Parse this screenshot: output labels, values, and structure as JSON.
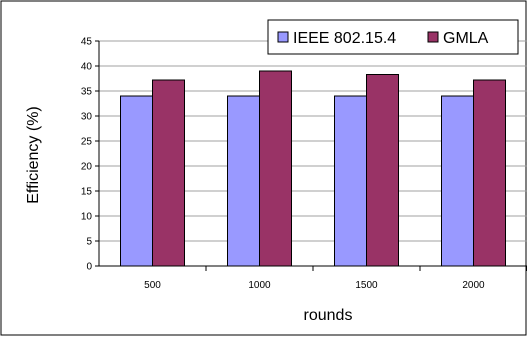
{
  "chart_data": {
    "type": "bar",
    "title": "",
    "xlabel": "rounds",
    "ylabel": "Efficiency (%)",
    "categories": [
      "500",
      "1000",
      "1500",
      "2000"
    ],
    "series": [
      {
        "name": "IEEE 802.15.4",
        "color": "#9999ff",
        "values": [
          34,
          34,
          34,
          34
        ]
      },
      {
        "name": "GMLA",
        "color": "#993366",
        "values": [
          37.2,
          39,
          38.3,
          37.2
        ]
      }
    ],
    "ylim": [
      0,
      45
    ],
    "yticks": [
      "0",
      "5",
      "10",
      "15",
      "20",
      "25",
      "30",
      "35",
      "40",
      "45"
    ],
    "grid": "horizontal",
    "legend": "top-right"
  }
}
